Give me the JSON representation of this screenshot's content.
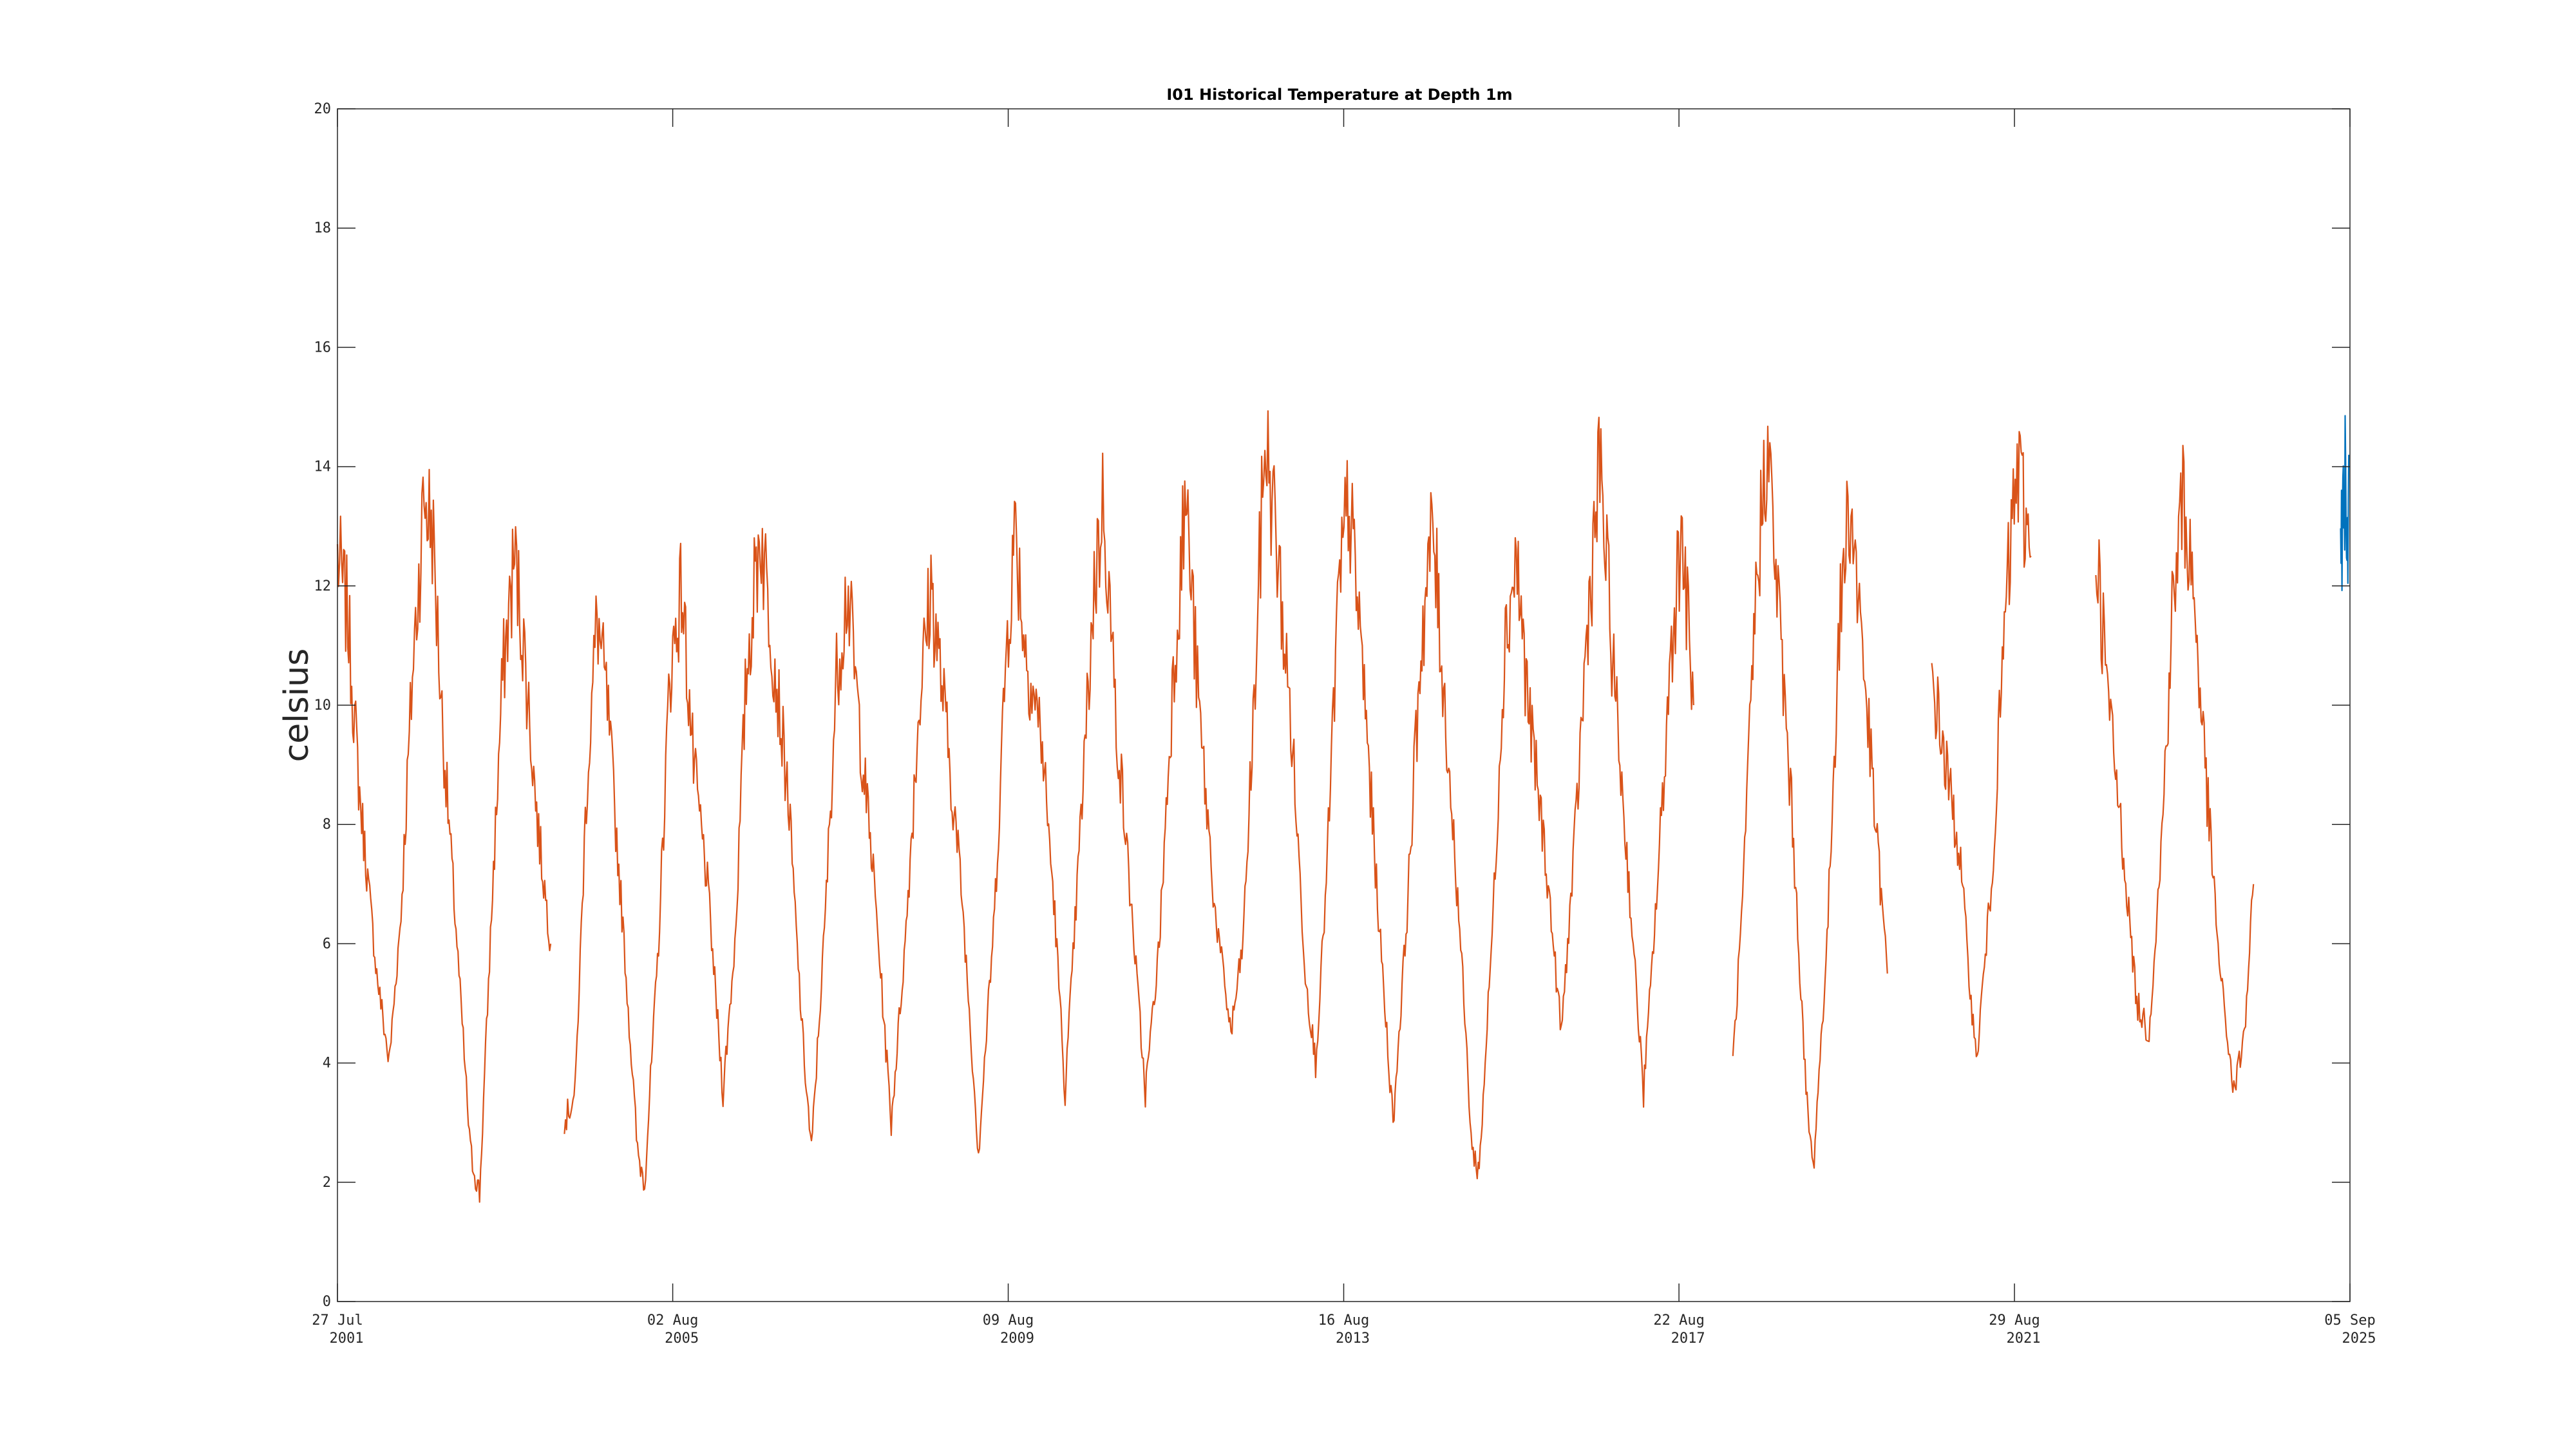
{
  "chart_data": {
    "type": "line",
    "title": "I01 Historical Temperature at Depth 1m",
    "xlabel": "",
    "ylabel": "celsius",
    "ylim": [
      0,
      20
    ],
    "xlim": [
      "2001-07-27",
      "2025-09-05"
    ],
    "grid": false,
    "y_ticks": [
      0,
      2,
      4,
      6,
      8,
      10,
      12,
      14,
      16,
      18,
      20
    ],
    "x_ticks": [
      {
        "date": "2001-07-27",
        "line1": "27 Jul",
        "line2": "2001"
      },
      {
        "date": "2005-08-02",
        "line1": "02 Aug",
        "line2": "2005"
      },
      {
        "date": "2009-08-09",
        "line1": "09 Aug",
        "line2": "2009"
      },
      {
        "date": "2013-08-16",
        "line1": "16 Aug",
        "line2": "2013"
      },
      {
        "date": "2017-08-22",
        "line1": "22 Aug",
        "line2": "2017"
      },
      {
        "date": "2021-08-29",
        "line1": "29 Aug",
        "line2": "2021"
      },
      {
        "date": "2025-09-05",
        "line1": "05 Sep",
        "line2": "2025"
      }
    ],
    "series": [
      {
        "color": "#D95319",
        "segments": [
          [
            [
              "2001-07-27",
              12.5
            ],
            [
              "2001-09-10",
              11.5
            ],
            [
              "2001-11-01",
              8.5
            ],
            [
              "2002-01-15",
              5.5
            ],
            [
              "2002-03-10",
              4.0
            ],
            [
              "2002-05-01",
              6.5
            ],
            [
              "2002-06-20",
              10.5
            ],
            [
              "2002-08-10",
              13.5
            ],
            [
              "2002-09-15",
              13.0
            ],
            [
              "2002-11-01",
              9.5
            ],
            [
              "2003-01-01",
              6.0
            ],
            [
              "2003-03-01",
              2.5
            ],
            [
              "2003-04-10",
              1.8
            ],
            [
              "2003-06-01",
              6.5
            ],
            [
              "2003-07-20",
              10.5
            ],
            [
              "2003-09-10",
              12.5
            ],
            [
              "2003-10-20",
              11.0
            ],
            [
              "2003-12-20",
              8.0
            ],
            [
              "2004-02-15",
              6.0
            ]
          ],
          [
            [
              "2004-04-15",
              3.0
            ],
            [
              "2004-06-01",
              3.5
            ],
            [
              "2004-07-20",
              8.5
            ],
            [
              "2004-09-05",
              11.5
            ],
            [
              "2004-10-20",
              10.0
            ],
            [
              "2005-01-01",
              6.0
            ],
            [
              "2005-03-01",
              2.5
            ],
            [
              "2005-04-01",
              2.0
            ],
            [
              "2005-06-01",
              6.0
            ],
            [
              "2005-07-20",
              10.5
            ],
            [
              "2005-09-10",
              12.0
            ],
            [
              "2005-11-01",
              9.0
            ],
            [
              "2006-01-01",
              7.0
            ],
            [
              "2006-03-10",
              3.5
            ],
            [
              "2006-05-01",
              6.0
            ],
            [
              "2006-06-20",
              10.5
            ],
            [
              "2006-08-20",
              13.0
            ],
            [
              "2006-10-01",
              11.5
            ],
            [
              "2006-12-20",
              8.5
            ],
            [
              "2007-02-20",
              4.5
            ],
            [
              "2007-04-01",
              2.5
            ],
            [
              "2007-06-01",
              6.5
            ],
            [
              "2007-07-20",
              10.5
            ],
            [
              "2007-09-05",
              12.0
            ],
            [
              "2007-11-01",
              9.5
            ],
            [
              "2008-01-01",
              7.0
            ],
            [
              "2008-03-15",
              3.0
            ],
            [
              "2008-05-15",
              6.0
            ],
            [
              "2008-07-15",
              10.0
            ],
            [
              "2008-09-05",
              12.0
            ],
            [
              "2008-11-01",
              10.0
            ],
            [
              "2009-01-15",
              7.0
            ],
            [
              "2009-04-01",
              2.5
            ],
            [
              "2009-06-10",
              6.5
            ],
            [
              "2009-08-01",
              11.0
            ],
            [
              "2009-09-10",
              13.0
            ],
            [
              "2009-10-20",
              11.0
            ],
            [
              "2010-01-01",
              9.5
            ],
            [
              "2010-03-01",
              6.5
            ],
            [
              "2010-04-15",
              3.5
            ],
            [
              "2010-06-15",
              7.5
            ],
            [
              "2010-08-20",
              12.0
            ],
            [
              "2010-10-01",
              13.5
            ],
            [
              "2010-11-20",
              10.0
            ],
            [
              "2011-02-01",
              6.5
            ],
            [
              "2011-04-01",
              3.5
            ],
            [
              "2011-06-01",
              6.0
            ],
            [
              "2011-08-01",
              10.5
            ],
            [
              "2011-09-25",
              13.5
            ],
            [
              "2011-11-20",
              10.0
            ],
            [
              "2012-02-01",
              6.5
            ],
            [
              "2012-04-10",
              4.5
            ],
            [
              "2012-06-01",
              6.0
            ],
            [
              "2012-07-20",
              10.0
            ],
            [
              "2012-09-05",
              14.5
            ],
            [
              "2012-10-20",
              13.0
            ],
            [
              "2013-01-01",
              9.5
            ],
            [
              "2013-03-01",
              5.5
            ],
            [
              "2013-04-15",
              4.0
            ],
            [
              "2013-06-01",
              7.0
            ],
            [
              "2013-07-20",
              11.5
            ],
            [
              "2013-09-05",
              13.5
            ],
            [
              "2013-11-01",
              11.0
            ],
            [
              "2014-01-15",
              6.5
            ],
            [
              "2014-03-20",
              3.0
            ],
            [
              "2014-05-20",
              6.5
            ],
            [
              "2014-07-20",
              11.0
            ],
            [
              "2014-09-10",
              13.0
            ],
            [
              "2014-11-01",
              10.0
            ],
            [
              "2015-01-10",
              6.0
            ],
            [
              "2015-03-01",
              2.5
            ],
            [
              "2015-04-01",
              2.2
            ],
            [
              "2015-06-01",
              6.5
            ],
            [
              "2015-07-20",
              11.0
            ],
            [
              "2015-09-10",
              12.5
            ],
            [
              "2015-11-01",
              10.0
            ],
            [
              "2016-01-15",
              7.5
            ],
            [
              "2016-03-25",
              4.5
            ],
            [
              "2016-05-20",
              7.5
            ],
            [
              "2016-07-20",
              11.5
            ],
            [
              "2016-09-10",
              14.0
            ],
            [
              "2016-11-01",
              11.0
            ],
            [
              "2017-01-15",
              7.0
            ],
            [
              "2017-03-20",
              3.5
            ],
            [
              "2017-05-20",
              7.0
            ],
            [
              "2017-07-20",
              11.0
            ],
            [
              "2017-09-01",
              13.0
            ],
            [
              "2017-10-25",
              10.0
            ]
          ],
          [
            [
              "2018-04-15",
              4.0
            ],
            [
              "2018-06-01",
              7.0
            ],
            [
              "2018-07-20",
              11.5
            ],
            [
              "2018-09-10",
              14.5
            ],
            [
              "2018-10-25",
              12.0
            ],
            [
              "2019-01-01",
              8.0
            ],
            [
              "2019-03-01",
              3.5
            ],
            [
              "2019-04-01",
              2.2
            ],
            [
              "2019-06-01",
              6.0
            ],
            [
              "2019-07-20",
              11.0
            ],
            [
              "2019-09-05",
              13.5
            ],
            [
              "2019-10-25",
              11.5
            ],
            [
              "2019-12-20",
              8.5
            ],
            [
              "2020-02-20",
              5.5
            ]
          ],
          [
            [
              "2020-09-01",
              10.5
            ],
            [
              "2020-11-01",
              9.0
            ],
            [
              "2021-01-01",
              7.5
            ],
            [
              "2021-03-15",
              4.0
            ],
            [
              "2021-05-20",
              7.0
            ],
            [
              "2021-07-20",
              11.5
            ],
            [
              "2021-09-10",
              14.0
            ],
            [
              "2021-11-10",
              12.5
            ]
          ],
          [
            [
              "2022-08-20",
              12.8
            ],
            [
              "2022-10-15",
              10.0
            ],
            [
              "2022-12-20",
              7.5
            ],
            [
              "2023-02-15",
              5.0
            ],
            [
              "2023-04-10",
              4.5
            ],
            [
              "2023-06-01",
              7.5
            ],
            [
              "2023-07-20",
              11.5
            ],
            [
              "2023-09-05",
              13.5
            ],
            [
              "2023-10-20",
              12.0
            ],
            [
              "2023-12-20",
              8.5
            ],
            [
              "2024-02-15",
              5.5
            ],
            [
              "2024-04-15",
              3.5
            ],
            [
              "2024-06-01",
              4.5
            ],
            [
              "2024-07-10",
              7.0
            ]
          ]
        ]
      },
      {
        "color": "#0072BD",
        "segments": [
          [
            [
              "2025-07-26",
              12.0
            ],
            [
              "2025-07-30",
              13.5
            ],
            [
              "2025-08-03",
              12.5
            ],
            [
              "2025-08-07",
              14.5
            ],
            [
              "2025-08-11",
              13.0
            ],
            [
              "2025-08-15",
              14.0
            ],
            [
              "2025-08-19",
              12.5
            ],
            [
              "2025-08-23",
              13.5
            ],
            [
              "2025-08-27",
              12.8
            ],
            [
              "2025-08-31",
              14.2
            ]
          ]
        ]
      }
    ]
  }
}
